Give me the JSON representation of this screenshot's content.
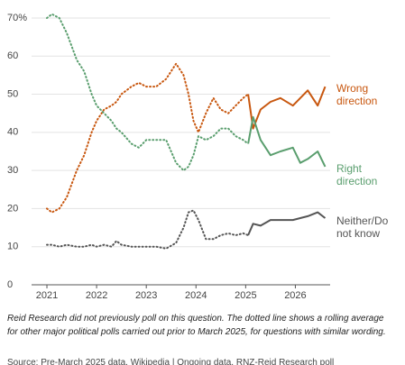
{
  "chart_data": {
    "type": "line",
    "x": [
      2021.0,
      2021.1,
      2021.25,
      2021.4,
      2021.6,
      2021.75,
      2021.9,
      2022.0,
      2022.15,
      2022.3,
      2022.4,
      2022.5,
      2022.7,
      2022.85,
      2023.0,
      2023.2,
      2023.4,
      2023.6,
      2023.75,
      2023.85,
      2023.95,
      2024.05,
      2024.2,
      2024.35,
      2024.5,
      2024.65,
      2024.8,
      2024.95,
      2025.05,
      2025.15,
      2025.3,
      2025.5,
      2025.7,
      2025.95,
      2026.1,
      2026.25,
      2026.45,
      2026.6
    ],
    "series": [
      {
        "name": "Wrong direction",
        "color": "#c8570f",
        "rolling_values": [
          20,
          19,
          20,
          23,
          30,
          34,
          40,
          43,
          46,
          47,
          48,
          50,
          52,
          53,
          52,
          52,
          54,
          58,
          55,
          50,
          43,
          40,
          45,
          49,
          46,
          45,
          47,
          49,
          50,
          null,
          null,
          null,
          null,
          null,
          null,
          null,
          null,
          null
        ],
        "values": [
          null,
          null,
          null,
          null,
          null,
          null,
          null,
          null,
          null,
          null,
          null,
          null,
          null,
          null,
          null,
          null,
          null,
          null,
          null,
          null,
          null,
          null,
          null,
          null,
          null,
          null,
          null,
          null,
          50,
          41,
          46,
          48,
          49,
          47,
          49,
          51,
          47,
          52
        ]
      },
      {
        "name": "Right direction",
        "color": "#5a9e6e",
        "rolling_values": [
          70,
          71,
          70,
          66,
          59,
          56,
          50,
          47,
          45,
          43,
          41,
          40,
          37,
          36,
          38,
          38,
          38,
          32,
          30,
          31,
          34,
          39,
          38,
          39,
          41,
          41,
          39,
          38,
          37,
          null,
          null,
          null,
          null,
          null,
          null,
          null,
          null,
          null
        ],
        "values": [
          null,
          null,
          null,
          null,
          null,
          null,
          null,
          null,
          null,
          null,
          null,
          null,
          null,
          null,
          null,
          null,
          null,
          null,
          null,
          null,
          null,
          null,
          null,
          null,
          null,
          null,
          null,
          null,
          37,
          44,
          38,
          34,
          35,
          36,
          32,
          33,
          35,
          31
        ]
      },
      {
        "name": "Neither/Do not know",
        "color": "#555555",
        "rolling_values": [
          10.5,
          10.5,
          10,
          10.5,
          10,
          10,
          10.5,
          10,
          10.5,
          10,
          11.5,
          10.5,
          10,
          10,
          10,
          10,
          9.5,
          11,
          15,
          19,
          19.5,
          17,
          12,
          12,
          13,
          13.5,
          13,
          13.5,
          13,
          null,
          null,
          null,
          null,
          null,
          null,
          null,
          null,
          null
        ],
        "values": [
          null,
          null,
          null,
          null,
          null,
          null,
          null,
          null,
          null,
          null,
          null,
          null,
          null,
          null,
          null,
          null,
          null,
          null,
          null,
          null,
          null,
          null,
          null,
          null,
          null,
          null,
          null,
          null,
          13,
          16,
          15.5,
          17,
          17,
          17,
          17.5,
          18,
          19,
          17.5
        ]
      }
    ],
    "xlim": [
      2020.8,
      2026.7
    ],
    "xticks": [
      2021,
      2022,
      2023,
      2024,
      2025,
      2026
    ],
    "ylim": [
      0,
      72
    ],
    "yticks": [
      0,
      10,
      20,
      30,
      40,
      50,
      60,
      {
        "value": 70,
        "label": "70%"
      }
    ],
    "grid": true,
    "caption": "Reid Research did not previously poll on this question. The dotted line shows a rolling average for other major political polls carried out prior to March 2025, for questions with similar wording.",
    "source": "Source: Pre-March 2025 data, Wikipedia | Ongoing data, RNZ-Reid Research poll"
  }
}
